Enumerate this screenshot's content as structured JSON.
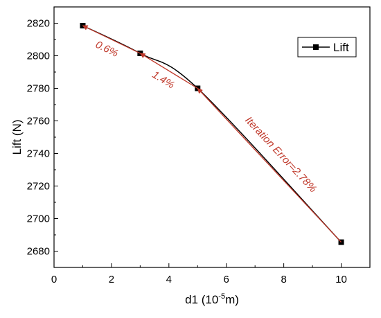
{
  "chart_data": {
    "type": "line",
    "x": [
      1,
      3,
      5,
      10
    ],
    "series": [
      {
        "name": "Lift",
        "values": [
          2818.5,
          2801.5,
          2780,
          2685.5
        ]
      }
    ],
    "xlabel_main": "d1 (10",
    "xlabel_exp": "-5",
    "xlabel_tail": "m)",
    "ylabel": "Lift (N)",
    "xlim": [
      0,
      11
    ],
    "ylim": [
      2670,
      2830
    ],
    "xticks": [
      0,
      2,
      4,
      6,
      8,
      10
    ],
    "yticks": [
      2680,
      2700,
      2720,
      2740,
      2760,
      2780,
      2800,
      2820
    ],
    "grid": false,
    "legend_position": "top-right",
    "annotations": [
      {
        "text": "0.6%",
        "from_x": 3,
        "from_y": 2801.5,
        "to_x": 1,
        "to_y": 2818.5
      },
      {
        "text": "1.4%",
        "from_x": 5,
        "from_y": 2780,
        "to_x": 3,
        "to_y": 2801.5
      },
      {
        "text": "Iteration Error=2.78%",
        "from_x": 10,
        "from_y": 2685.5,
        "to_x": 5,
        "to_y": 2780
      }
    ],
    "colors": {
      "line": "#000000",
      "annotation": "#c0392b"
    }
  }
}
